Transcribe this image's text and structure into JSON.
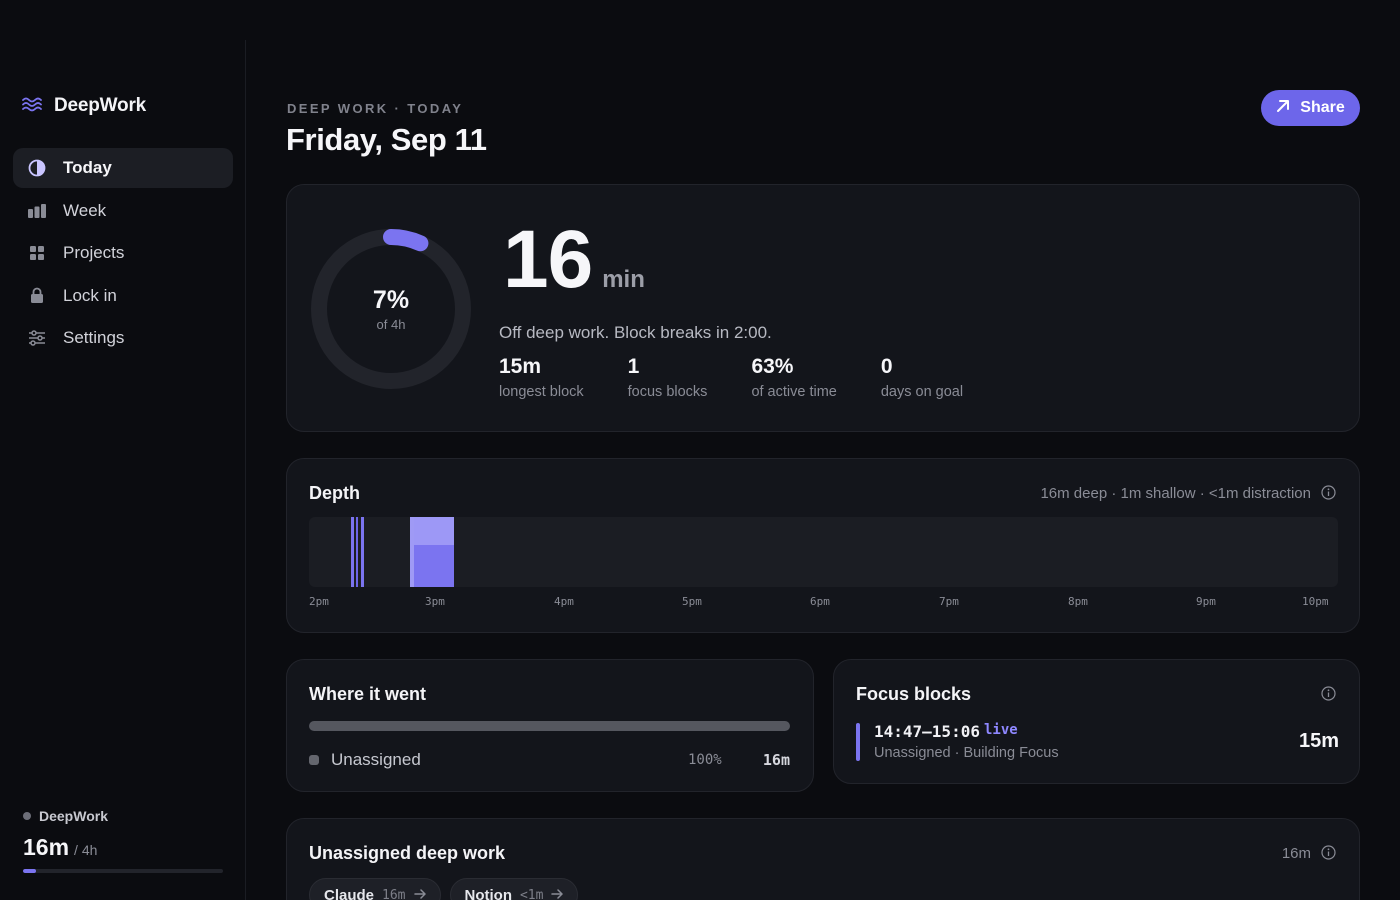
{
  "app": {
    "name": "DeepWork"
  },
  "sidebar": {
    "items": [
      {
        "label": "Today",
        "icon": "half-circle-icon",
        "active": true
      },
      {
        "label": "Week",
        "icon": "bar-chart-icon",
        "active": false
      },
      {
        "label": "Projects",
        "icon": "grid-icon",
        "active": false
      },
      {
        "label": "Lock in",
        "icon": "lock-icon",
        "active": false
      },
      {
        "label": "Settings",
        "icon": "sliders-icon",
        "active": false
      }
    ],
    "footer": {
      "name": "DeepWork",
      "time": "16m",
      "goal": "/ 4h",
      "progress": 0.067
    }
  },
  "header": {
    "eyebrow": "DEEP WORK · TODAY",
    "title": "Friday, Sep 11",
    "share_label": "Share"
  },
  "hero": {
    "ring_percent": "7%",
    "ring_sub": "of 4h",
    "ring_fraction": 0.067,
    "minutes": "16",
    "unit": "min",
    "status": "Off deep work. Block breaks in 2:00.",
    "stats": [
      {
        "value": "15m",
        "label": "longest block"
      },
      {
        "value": "1",
        "label": "focus blocks"
      },
      {
        "value": "63%",
        "label": "of active time"
      },
      {
        "value": "0",
        "label": "days on goal"
      }
    ]
  },
  "depth": {
    "title": "Depth",
    "summary": "16m deep · 1m shallow · <1m distraction",
    "axis_labels": [
      "2pm",
      "3pm",
      "4pm",
      "5pm",
      "6pm",
      "7pm",
      "8pm",
      "9pm",
      "10pm"
    ]
  },
  "where": {
    "title": "Where it went",
    "rows": [
      {
        "name": "Unassigned",
        "percent": "100%",
        "duration": "16m"
      }
    ]
  },
  "focus": {
    "title": "Focus blocks",
    "blocks": [
      {
        "time": "14:47–15:06",
        "badge": "live",
        "sub": "Unassigned · Building Focus",
        "duration": "15m"
      }
    ]
  },
  "unassigned": {
    "title": "Unassigned deep work",
    "total": "16m",
    "chips": [
      {
        "name": "Claude",
        "duration": "16m"
      },
      {
        "name": "Notion",
        "duration": "<1m"
      }
    ]
  },
  "colors": {
    "accent": "#6d66ea",
    "accent_light": "#8e87ff",
    "background": "#0b0c10",
    "card": "#13151b"
  }
}
